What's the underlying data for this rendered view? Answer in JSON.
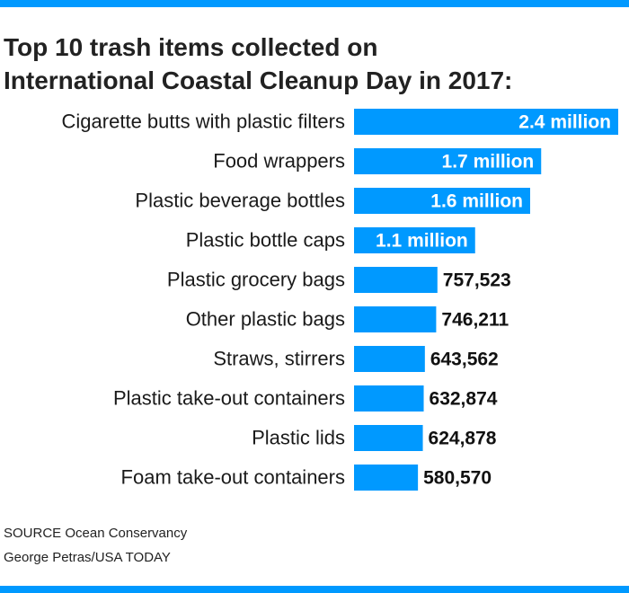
{
  "header": {
    "title_line1": "Top 10 trash items collected on",
    "title_line2": "International Coastal Cleanup Day in 2017:"
  },
  "footer": {
    "source": "SOURCE Ocean Conservancy",
    "credit": "George Petras/USA TODAY"
  },
  "colors": {
    "bar": "#0099ff",
    "rule": "#0099ff"
  },
  "chart_data": {
    "type": "bar",
    "orientation": "horizontal",
    "categories": [
      "Cigarette butts with plastic filters",
      "Food wrappers",
      "Plastic beverage bottles",
      "Plastic bottle caps",
      "Plastic grocery bags",
      "Other plastic bags",
      "Straws, stirrers",
      "Plastic take-out containers",
      "Plastic lids",
      "Foam take-out containers"
    ],
    "values": [
      2400000,
      1700000,
      1600000,
      1100000,
      757523,
      746211,
      643562,
      632874,
      624878,
      580570
    ],
    "value_labels": [
      "2.4 million",
      "1.7 million",
      "1.6 million",
      "1.1 million",
      "757,523",
      "746,211",
      "643,562",
      "632,874",
      "624,878",
      "580,570"
    ],
    "title": "Top 10 trash items collected on International Coastal Cleanup Day in 2017:",
    "xlabel": "",
    "ylabel": "",
    "xlim": [
      0,
      2400000
    ],
    "grid": false,
    "legend": "none"
  }
}
